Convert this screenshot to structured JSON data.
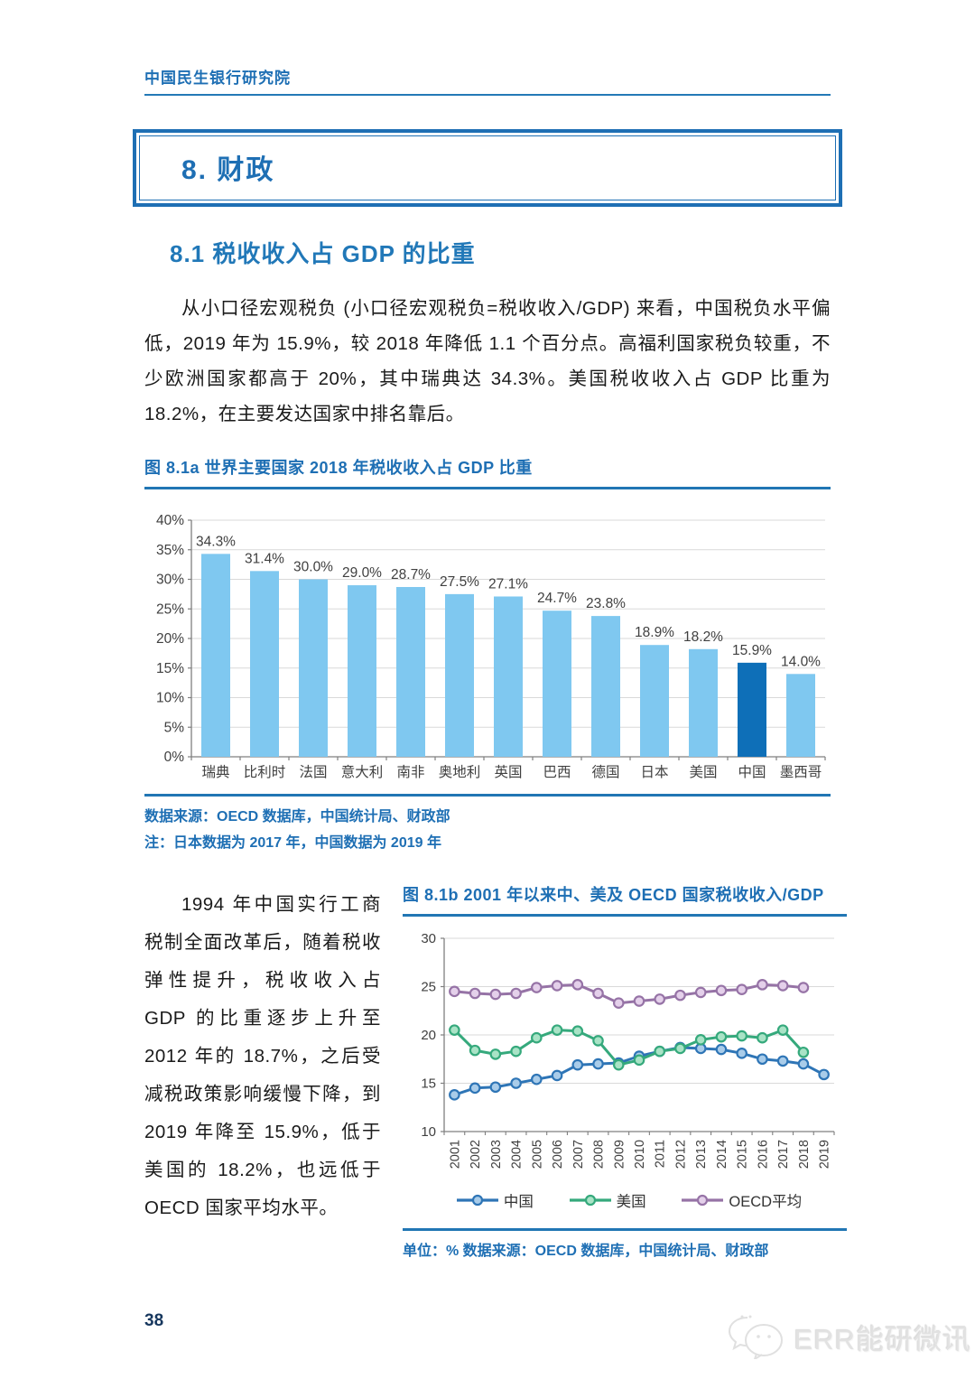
{
  "page": {
    "header": {
      "org": "中国民生银行研究院"
    },
    "chapter_title": "8. 财政",
    "section_title": "8.1 税收收入占 GDP 的比重",
    "paragraph_intro": "从小口径宏观税负 (小口径宏观税负=税收收入/GDP) 来看，中国税负水平偏低，2019 年为 15.9%，较 2018 年降低 1.1 个百分点。高福利国家税负较重，不少欧洲国家都高于 20%，其中瑞典达 34.3%。美国税收收入占 GDP 比重为 18.2%，在主要发达国家中排名靠后。",
    "paragraph_history": "1994 年中国实行工商税制全面改革后，随着税收弹性提升，税收收入占 GDP 的比重逐步上升至 2012 年的 18.7%，之后受减税政策影响缓慢下降，到 2019 年降至 15.9%，低于美国的 18.2%，也远低于 OECD 国家平均水平。",
    "page_number": "38",
    "watermark_text": "ERR能研微讯"
  },
  "figure_a": {
    "title": "图 8.1a 世界主要国家 2018 年税收收入占 GDP 比重",
    "source": "数据来源：OECD 数据库，中国统计局、财政部",
    "note": "注：日本数据为 2017 年，中国数据为 2019 年"
  },
  "figure_b": {
    "title": "图 8.1b 2001 年以来中、美及 OECD 国家税收收入/GDP",
    "note": "单位：% 数据来源：OECD 数据库，中国统计局、财政部"
  },
  "colors": {
    "accent_blue": "#1E6FB4",
    "rule_blue": "#2176B4",
    "bar_light": "#7FC8F0",
    "bar_highlight": "#0E6FB8",
    "grid": "#D9D9D9",
    "axis": "#7F7F7F",
    "axis_text": "#404040",
    "page_number": "#17375E",
    "watermark": "#E2E2E2"
  },
  "chart_data": [
    {
      "type": "bar",
      "title": "图 8.1a 世界主要国家 2018 年税收收入占 GDP 比重",
      "categories": [
        "瑞典",
        "比利时",
        "法国",
        "意大利",
        "南非",
        "奥地利",
        "英国",
        "巴西",
        "德国",
        "日本",
        "美国",
        "中国",
        "墨西哥"
      ],
      "values": [
        34.3,
        31.4,
        30.0,
        29.0,
        28.7,
        27.5,
        27.1,
        24.7,
        23.8,
        18.9,
        18.2,
        15.9,
        14.0
      ],
      "labels": [
        "34.3%",
        "31.4%",
        "30.0%",
        "29.0%",
        "28.7%",
        "27.5%",
        "27.1%",
        "24.7%",
        "23.8%",
        "18.9%",
        "18.2%",
        "15.9%",
        "14.0%"
      ],
      "highlight_index": 11,
      "bar_color": "#7FC8F0",
      "highlight_color": "#0E6FB8",
      "ylim": [
        0,
        40
      ],
      "ytick_step": 5,
      "ytick_suffix": "%",
      "grid": true,
      "legend": false
    },
    {
      "type": "line",
      "title": "图 8.1b 2001 年以来中、美及 OECD 国家税收收入/GDP",
      "x": [
        2001,
        2002,
        2003,
        2004,
        2005,
        2006,
        2007,
        2008,
        2009,
        2010,
        2011,
        2012,
        2013,
        2014,
        2015,
        2016,
        2017,
        2018,
        2019
      ],
      "series": [
        {
          "name": "中国",
          "color": "#2E75B6",
          "marker_fill": "#A9CCE9",
          "values": [
            13.8,
            14.5,
            14.6,
            15.0,
            15.4,
            15.8,
            16.9,
            17.0,
            17.1,
            17.8,
            18.3,
            18.7,
            18.6,
            18.5,
            18.1,
            17.5,
            17.3,
            17.0,
            15.9
          ]
        },
        {
          "name": "美国",
          "color": "#35A97C",
          "marker_fill": "#A9E3C6",
          "values": [
            20.5,
            18.4,
            18.0,
            18.3,
            19.7,
            20.5,
            20.4,
            19.4,
            16.9,
            17.4,
            18.3,
            18.6,
            19.5,
            19.8,
            19.9,
            19.7,
            20.5,
            18.2,
            null
          ]
        },
        {
          "name": "OECD平均",
          "color": "#9673A6",
          "marker_fill": "#E4D0EA",
          "values": [
            24.5,
            24.3,
            24.2,
            24.3,
            24.9,
            25.1,
            25.2,
            24.3,
            23.3,
            23.5,
            23.7,
            24.1,
            24.4,
            24.6,
            24.7,
            25.2,
            25.1,
            24.9,
            null
          ]
        }
      ],
      "ylim": [
        10,
        30
      ],
      "ytick_step": 5,
      "grid": true,
      "legend_position": "bottom",
      "unit": "%"
    }
  ]
}
